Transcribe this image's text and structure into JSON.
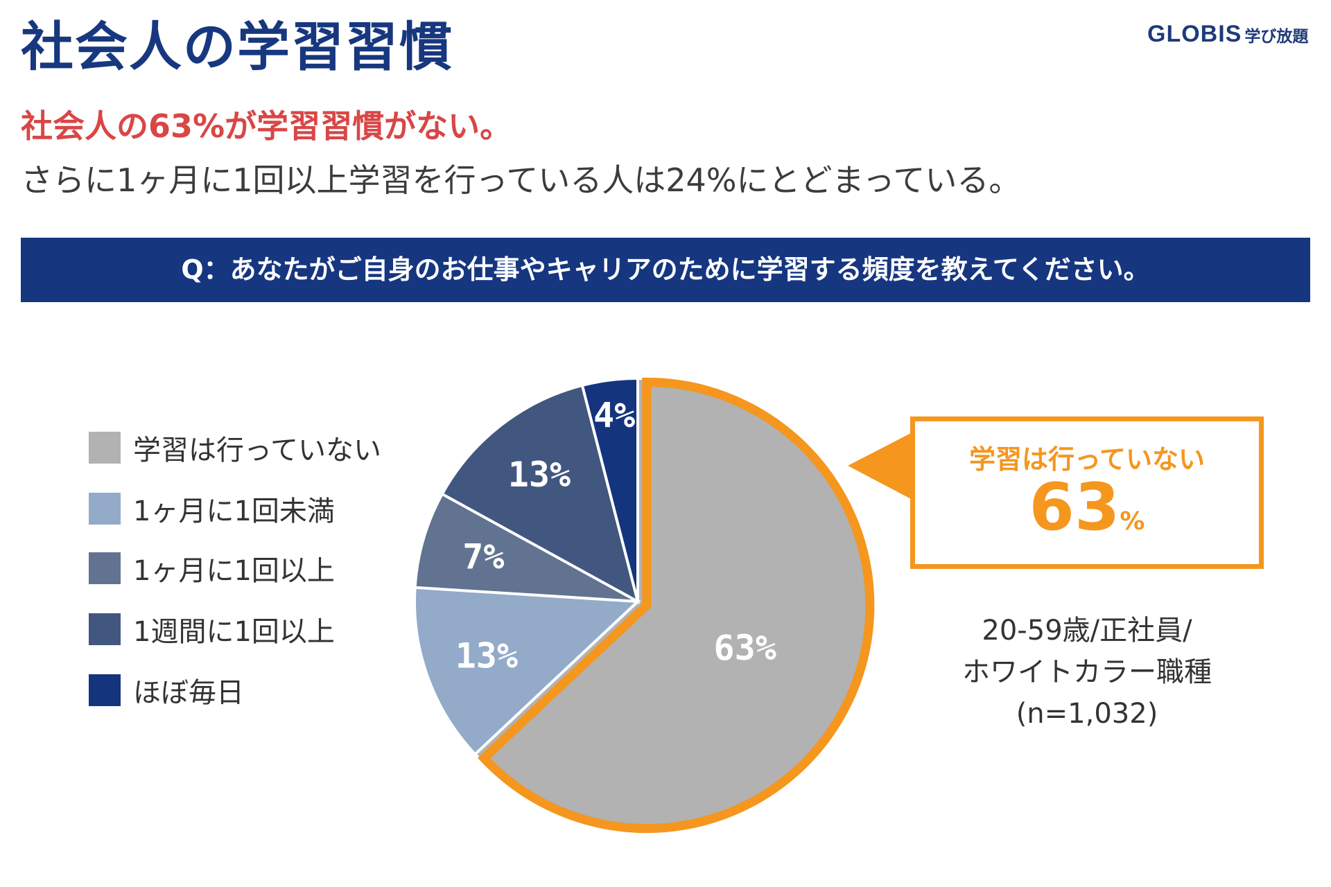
{
  "title": "社会人の学習習慣",
  "logo": {
    "main": "GLOBIS",
    "sub": "学び放題"
  },
  "headline": {
    "red": "社会人の63%が学習習慣がない。",
    "gray": "さらに1ヶ月に1回以上学習を行っている人は24%にとどまっている。"
  },
  "question": "Q：あなたがご自身のお仕事やキャリアのために学習する頻度を教えてください。",
  "chart_data": {
    "type": "pie",
    "categories": [
      "学習は行っていない",
      "1ヶ月に1回未満",
      "1ヶ月に1回以上",
      "1週間に1回以上",
      "ほぼ毎日"
    ],
    "values": [
      63,
      13,
      7,
      13,
      4
    ],
    "labels": [
      "63%",
      "13%",
      "7%",
      "13%",
      "4%"
    ],
    "colors": [
      "#b2b2b2",
      "#93aac9",
      "#617391",
      "#415780",
      "#15347e"
    ],
    "highlight_color": "#f5961e",
    "highlight_index": 0,
    "legend_position": "left"
  },
  "callout": {
    "label": "学習は行っていない",
    "value": "63",
    "unit": "%"
  },
  "note": {
    "line1": "20-59歳/正社員/",
    "line2": "ホワイトカラー職種",
    "line3": "(n=1,032)"
  }
}
